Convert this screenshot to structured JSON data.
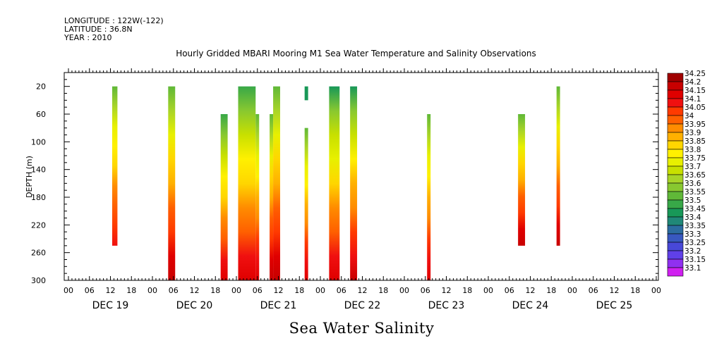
{
  "header": {
    "longitude": "LONGITUDE : 122W(-122)",
    "latitude": "LATITUDE : 36.8N",
    "year": "YEAR : 2010"
  },
  "chart_data": {
    "type": "heatmap",
    "title": "Hourly Gridded MBARI Mooring M1 Sea Water Temperature and Salinity Observations",
    "xlabel": "Sea Water Salinity",
    "ylabel": "DEPTH (m)",
    "ylim": [
      300,
      0
    ],
    "yticks": [
      20,
      60,
      100,
      140,
      180,
      220,
      260,
      300
    ],
    "x_start": "DEC 19 00",
    "x_range_hours": [
      0,
      168
    ],
    "hour_ticks": [
      "00",
      "06",
      "12",
      "18",
      "00",
      "06",
      "12",
      "18",
      "00",
      "06",
      "12",
      "18",
      "00",
      "06",
      "12",
      "18",
      "00",
      "06",
      "12",
      "18",
      "00",
      "06",
      "12",
      "18",
      "00",
      "06",
      "12",
      "18",
      "00"
    ],
    "day_labels": [
      "DEC 19",
      "DEC 20",
      "DEC 21",
      "DEC 22",
      "DEC 23",
      "DEC 24",
      "DEC 25"
    ],
    "colorbar": {
      "levels": [
        "34.25",
        "34.2",
        "34.15",
        "34.1",
        "34.05",
        "34",
        "33.95",
        "33.9",
        "33.85",
        "33.8",
        "33.75",
        "33.7",
        "33.65",
        "33.6",
        "33.55",
        "33.5",
        "33.45",
        "33.4",
        "33.35",
        "33.3",
        "33.25",
        "33.2",
        "33.15",
        "33.1"
      ],
      "colors": [
        "#a00000",
        "#c80000",
        "#e00000",
        "#f01010",
        "#ff3a00",
        "#ff6000",
        "#ff8c00",
        "#ffb000",
        "#ffd600",
        "#fff000",
        "#e8f000",
        "#c8e000",
        "#a8d428",
        "#88c830",
        "#60b838",
        "#38a848",
        "#189858",
        "#208878",
        "#2c6ca0",
        "#3858c0",
        "#4848d8",
        "#6040e8",
        "#9030f0",
        "#d020f0"
      ]
    },
    "observation_blocks": [
      {
        "start_hour": 12.5,
        "end_hour": 14,
        "top_depth": 20,
        "bottom_depth": 250,
        "surface_salinity": 33.55,
        "deep_salinity": 34.1
      },
      {
        "start_hour": 28.5,
        "end_hour": 30.5,
        "top_depth": 20,
        "bottom_depth": 300,
        "surface_salinity": 33.55,
        "deep_salinity": 34.2
      },
      {
        "start_hour": 43.5,
        "end_hour": 45.5,
        "top_depth": 60,
        "bottom_depth": 300,
        "surface_salinity": 33.5,
        "deep_salinity": 34.15
      },
      {
        "start_hour": 48.5,
        "end_hour": 53.5,
        "top_depth": 20,
        "bottom_depth": 300,
        "surface_salinity": 33.5,
        "deep_salinity": 34.15
      },
      {
        "start_hour": 53.5,
        "end_hour": 54.5,
        "top_depth": 60,
        "bottom_depth": 300,
        "surface_salinity": 33.55,
        "deep_salinity": 34.15
      },
      {
        "start_hour": 57.5,
        "end_hour": 58.5,
        "top_depth": 60,
        "bottom_depth": 300,
        "surface_salinity": 33.55,
        "deep_salinity": 34.2
      },
      {
        "start_hour": 58.5,
        "end_hour": 60.5,
        "top_depth": 20,
        "bottom_depth": 300,
        "surface_salinity": 33.55,
        "deep_salinity": 34.2
      },
      {
        "start_hour": 67.5,
        "end_hour": 68.5,
        "top_depth": 20,
        "bottom_depth": 40,
        "surface_salinity": 33.45,
        "deep_salinity": 33.45
      },
      {
        "start_hour": 67.5,
        "end_hour": 68.5,
        "top_depth": 80,
        "bottom_depth": 300,
        "surface_salinity": 33.55,
        "deep_salinity": 34.15
      },
      {
        "start_hour": 74.5,
        "end_hour": 77.5,
        "top_depth": 20,
        "bottom_depth": 300,
        "surface_salinity": 33.45,
        "deep_salinity": 34.15
      },
      {
        "start_hour": 80.5,
        "end_hour": 82.5,
        "top_depth": 20,
        "bottom_depth": 300,
        "surface_salinity": 33.45,
        "deep_salinity": 34.2
      },
      {
        "start_hour": 102.5,
        "end_hour": 103.5,
        "top_depth": 60,
        "bottom_depth": 300,
        "surface_salinity": 33.55,
        "deep_salinity": 34.15
      },
      {
        "start_hour": 128.5,
        "end_hour": 130.5,
        "top_depth": 60,
        "bottom_depth": 250,
        "surface_salinity": 33.55,
        "deep_salinity": 34.2
      },
      {
        "start_hour": 139.5,
        "end_hour": 140.5,
        "top_depth": 20,
        "bottom_depth": 250,
        "surface_salinity": 33.55,
        "deep_salinity": 34.2
      }
    ]
  }
}
